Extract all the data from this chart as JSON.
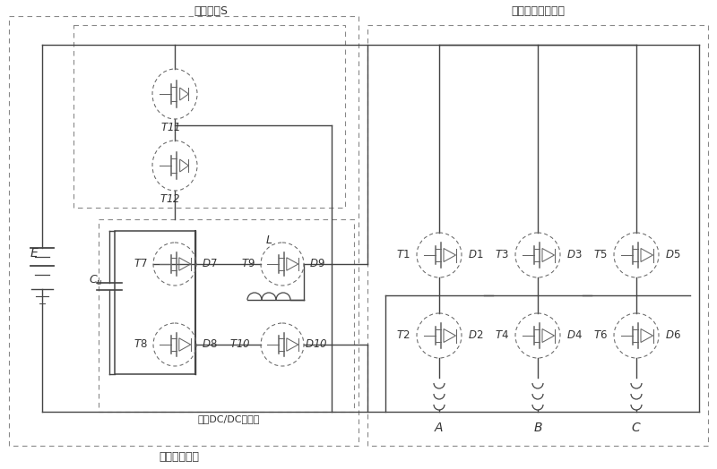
{
  "bg_color": "#ffffff",
  "line_color": "#444444",
  "dash_color": "#888888",
  "text_color": "#333333",
  "title_left": "功率开关S",
  "title_right": "三相全桥逆变电路",
  "label_composite": "复合电源系统",
  "label_bidirectional": "双向DC/DC变换器",
  "fs_title": 9,
  "fs_label": 8,
  "fs_comp": 8.5
}
